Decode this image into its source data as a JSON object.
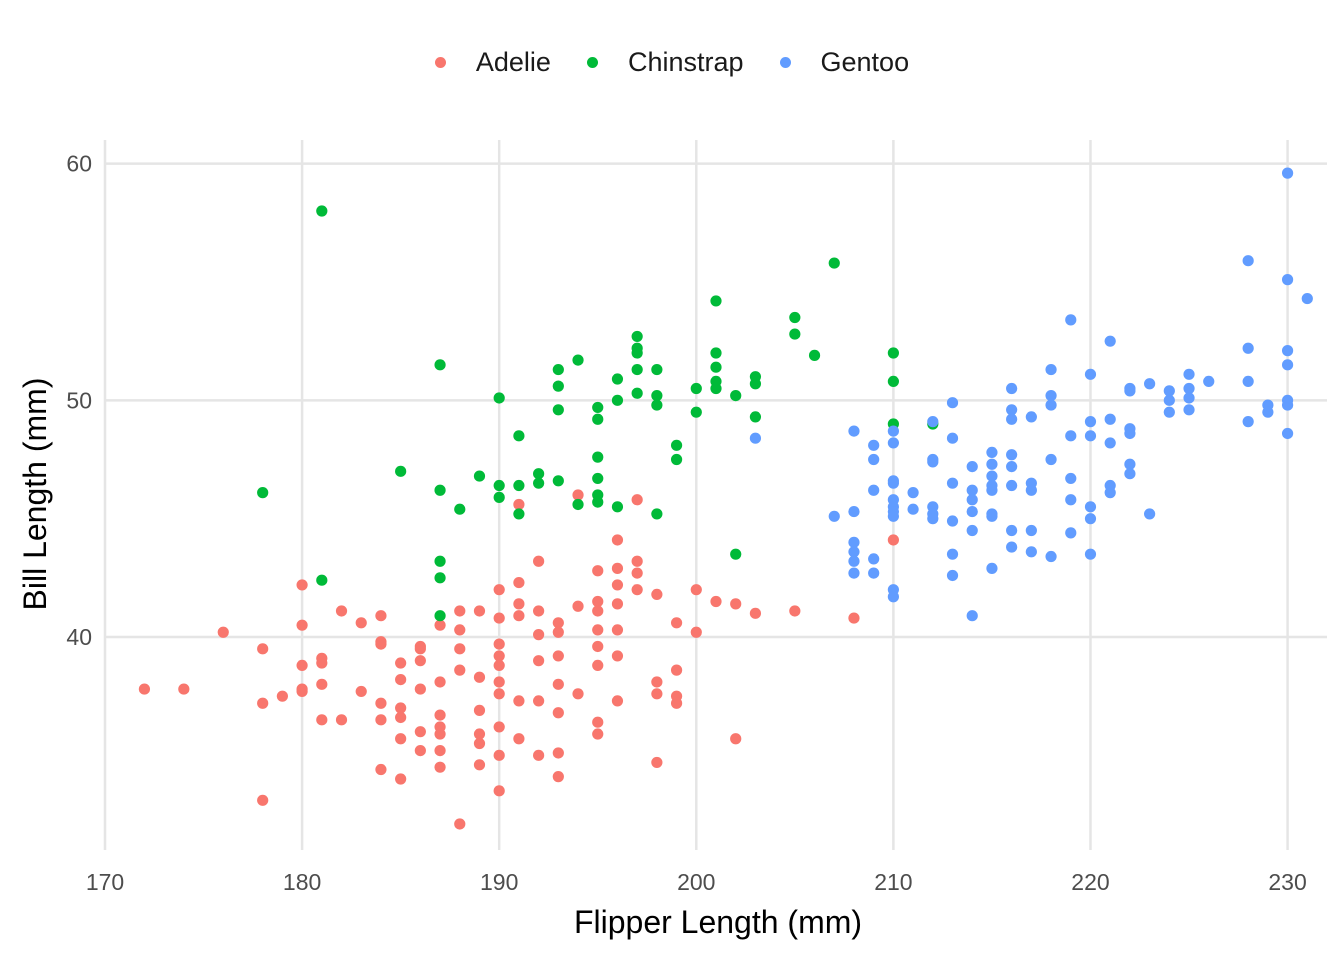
{
  "chart_data": {
    "type": "scatter",
    "xlabel": "Flipper Length (mm)",
    "ylabel": "Bill Length (mm)",
    "xlim": [
      170,
      232
    ],
    "ylim": [
      31,
      61
    ],
    "xticks": [
      "170",
      "180",
      "190",
      "200",
      "210",
      "220",
      "230"
    ],
    "yticks": [
      "40",
      "50",
      "60"
    ],
    "grid": true,
    "legend_position": "top",
    "series": [
      {
        "name": "Adelie",
        "color": "#F8766D",
        "points": [
          [
            172,
            37.8
          ],
          [
            174,
            37.8
          ],
          [
            176,
            40.2
          ],
          [
            178,
            39.5
          ],
          [
            178,
            37.2
          ],
          [
            178,
            33.1
          ],
          [
            179,
            37.5
          ],
          [
            180,
            42.2
          ],
          [
            180,
            40.5
          ],
          [
            180,
            38.8
          ],
          [
            180,
            37.8
          ],
          [
            180,
            37.7
          ],
          [
            181,
            39.1
          ],
          [
            181,
            38.9
          ],
          [
            181,
            38.0
          ],
          [
            181,
            36.5
          ],
          [
            182,
            41.1
          ],
          [
            182,
            36.5
          ],
          [
            183,
            40.6
          ],
          [
            183,
            37.7
          ],
          [
            184,
            40.9
          ],
          [
            184,
            39.8
          ],
          [
            184,
            39.7
          ],
          [
            184,
            37.2
          ],
          [
            184,
            36.5
          ],
          [
            184,
            34.4
          ],
          [
            185,
            38.9
          ],
          [
            185,
            38.2
          ],
          [
            185,
            37.0
          ],
          [
            185,
            36.6
          ],
          [
            185,
            35.7
          ],
          [
            185,
            34.0
          ],
          [
            186,
            39.6
          ],
          [
            186,
            39.5
          ],
          [
            186,
            39.0
          ],
          [
            186,
            37.8
          ],
          [
            186,
            36.0
          ],
          [
            186,
            35.2
          ],
          [
            187,
            40.5
          ],
          [
            187,
            38.1
          ],
          [
            187,
            36.7
          ],
          [
            187,
            36.2
          ],
          [
            187,
            35.9
          ],
          [
            187,
            35.2
          ],
          [
            187,
            34.5
          ],
          [
            188,
            41.1
          ],
          [
            188,
            40.3
          ],
          [
            188,
            39.5
          ],
          [
            188,
            38.6
          ],
          [
            188,
            32.1
          ],
          [
            189,
            41.1
          ],
          [
            189,
            38.3
          ],
          [
            189,
            36.9
          ],
          [
            189,
            35.9
          ],
          [
            189,
            35.5
          ],
          [
            189,
            34.6
          ],
          [
            190,
            42.0
          ],
          [
            190,
            40.8
          ],
          [
            190,
            39.7
          ],
          [
            190,
            39.2
          ],
          [
            190,
            38.8
          ],
          [
            190,
            38.1
          ],
          [
            190,
            37.6
          ],
          [
            190,
            36.2
          ],
          [
            190,
            35.0
          ],
          [
            190,
            33.5
          ],
          [
            191,
            45.6
          ],
          [
            191,
            42.3
          ],
          [
            191,
            41.4
          ],
          [
            191,
            40.9
          ],
          [
            191,
            37.3
          ],
          [
            191,
            35.7
          ],
          [
            192,
            43.2
          ],
          [
            192,
            41.1
          ],
          [
            192,
            40.1
          ],
          [
            192,
            39.0
          ],
          [
            192,
            37.3
          ],
          [
            192,
            35.0
          ],
          [
            193,
            40.6
          ],
          [
            193,
            40.2
          ],
          [
            193,
            39.2
          ],
          [
            193,
            38.0
          ],
          [
            193,
            36.8
          ],
          [
            193,
            35.1
          ],
          [
            193,
            34.1
          ],
          [
            194,
            46.0
          ],
          [
            194,
            41.3
          ],
          [
            194,
            37.6
          ],
          [
            195,
            42.8
          ],
          [
            195,
            41.5
          ],
          [
            195,
            41.1
          ],
          [
            195,
            40.3
          ],
          [
            195,
            39.6
          ],
          [
            195,
            38.8
          ],
          [
            195,
            36.4
          ],
          [
            195,
            35.9
          ],
          [
            196,
            44.1
          ],
          [
            196,
            42.9
          ],
          [
            196,
            42.2
          ],
          [
            196,
            41.4
          ],
          [
            196,
            40.3
          ],
          [
            196,
            39.2
          ],
          [
            196,
            37.3
          ],
          [
            197,
            45.8
          ],
          [
            197,
            43.2
          ],
          [
            197,
            42.7
          ],
          [
            197,
            42.0
          ],
          [
            198,
            41.8
          ],
          [
            198,
            38.1
          ],
          [
            198,
            37.6
          ],
          [
            198,
            34.7
          ],
          [
            199,
            40.6
          ],
          [
            199,
            38.6
          ],
          [
            199,
            37.5
          ],
          [
            199,
            37.2
          ],
          [
            200,
            42.0
          ],
          [
            200,
            40.2
          ],
          [
            201,
            41.5
          ],
          [
            202,
            41.4
          ],
          [
            202,
            35.7
          ],
          [
            203,
            41.0
          ],
          [
            205,
            41.1
          ],
          [
            208,
            40.8
          ],
          [
            210,
            44.1
          ]
        ]
      },
      {
        "name": "Chinstrap",
        "color": "#00BA38",
        "points": [
          [
            178,
            46.1
          ],
          [
            181,
            58.0
          ],
          [
            181,
            42.4
          ],
          [
            185,
            47.0
          ],
          [
            187,
            51.5
          ],
          [
            187,
            46.2
          ],
          [
            187,
            43.2
          ],
          [
            187,
            42.5
          ],
          [
            187,
            40.9
          ],
          [
            188,
            45.4
          ],
          [
            189,
            46.8
          ],
          [
            190,
            50.1
          ],
          [
            190,
            46.4
          ],
          [
            190,
            45.9
          ],
          [
            191,
            48.5
          ],
          [
            191,
            46.4
          ],
          [
            191,
            45.2
          ],
          [
            192,
            46.9
          ],
          [
            192,
            46.5
          ],
          [
            193,
            51.3
          ],
          [
            193,
            50.6
          ],
          [
            193,
            49.6
          ],
          [
            193,
            46.6
          ],
          [
            194,
            51.7
          ],
          [
            194,
            45.6
          ],
          [
            195,
            49.7
          ],
          [
            195,
            49.2
          ],
          [
            195,
            47.6
          ],
          [
            195,
            46.7
          ],
          [
            195,
            46.0
          ],
          [
            195,
            45.7
          ],
          [
            196,
            50.9
          ],
          [
            196,
            50.0
          ],
          [
            196,
            45.5
          ],
          [
            197,
            52.7
          ],
          [
            197,
            52.2
          ],
          [
            197,
            52.0
          ],
          [
            197,
            51.3
          ],
          [
            197,
            50.3
          ],
          [
            198,
            51.3
          ],
          [
            198,
            50.2
          ],
          [
            198,
            49.8
          ],
          [
            198,
            45.2
          ],
          [
            199,
            48.1
          ],
          [
            199,
            47.5
          ],
          [
            200,
            50.5
          ],
          [
            200,
            49.5
          ],
          [
            201,
            54.2
          ],
          [
            201,
            52.0
          ],
          [
            201,
            51.4
          ],
          [
            201,
            50.8
          ],
          [
            201,
            50.5
          ],
          [
            202,
            50.2
          ],
          [
            202,
            43.5
          ],
          [
            203,
            51.0
          ],
          [
            203,
            50.7
          ],
          [
            203,
            49.3
          ],
          [
            205,
            53.5
          ],
          [
            205,
            52.8
          ],
          [
            206,
            51.9
          ],
          [
            207,
            55.8
          ],
          [
            210,
            52.0
          ],
          [
            210,
            50.8
          ],
          [
            210,
            49.0
          ],
          [
            212,
            49.0
          ]
        ]
      },
      {
        "name": "Gentoo",
        "color": "#619CFF",
        "points": [
          [
            203,
            48.4
          ],
          [
            207,
            45.1
          ],
          [
            208,
            48.7
          ],
          [
            208,
            45.3
          ],
          [
            208,
            44.0
          ],
          [
            208,
            43.6
          ],
          [
            208,
            43.2
          ],
          [
            208,
            42.7
          ],
          [
            209,
            48.1
          ],
          [
            209,
            47.5
          ],
          [
            209,
            46.2
          ],
          [
            209,
            43.3
          ],
          [
            209,
            42.7
          ],
          [
            210,
            48.7
          ],
          [
            210,
            48.2
          ],
          [
            210,
            46.6
          ],
          [
            210,
            46.5
          ],
          [
            210,
            45.8
          ],
          [
            210,
            45.5
          ],
          [
            210,
            45.3
          ],
          [
            210,
            45.1
          ],
          [
            210,
            42.0
          ],
          [
            210,
            41.7
          ],
          [
            211,
            46.1
          ],
          [
            211,
            45.4
          ],
          [
            212,
            49.1
          ],
          [
            212,
            47.5
          ],
          [
            212,
            47.4
          ],
          [
            212,
            45.5
          ],
          [
            212,
            45.2
          ],
          [
            212,
            45.0
          ],
          [
            213,
            49.9
          ],
          [
            213,
            48.4
          ],
          [
            213,
            46.5
          ],
          [
            213,
            44.9
          ],
          [
            213,
            43.5
          ],
          [
            213,
            42.6
          ],
          [
            214,
            47.2
          ],
          [
            214,
            46.2
          ],
          [
            214,
            45.8
          ],
          [
            214,
            45.3
          ],
          [
            214,
            44.5
          ],
          [
            214,
            40.9
          ],
          [
            215,
            47.8
          ],
          [
            215,
            47.3
          ],
          [
            215,
            46.8
          ],
          [
            215,
            46.4
          ],
          [
            215,
            46.2
          ],
          [
            215,
            45.2
          ],
          [
            215,
            45.1
          ],
          [
            215,
            42.9
          ],
          [
            216,
            50.5
          ],
          [
            216,
            49.6
          ],
          [
            216,
            49.2
          ],
          [
            216,
            47.7
          ],
          [
            216,
            47.2
          ],
          [
            216,
            46.4
          ],
          [
            216,
            44.5
          ],
          [
            216,
            43.8
          ],
          [
            217,
            49.3
          ],
          [
            217,
            46.5
          ],
          [
            217,
            46.2
          ],
          [
            217,
            44.5
          ],
          [
            217,
            43.6
          ],
          [
            218,
            51.3
          ],
          [
            218,
            50.2
          ],
          [
            218,
            49.8
          ],
          [
            218,
            47.5
          ],
          [
            218,
            43.4
          ],
          [
            219,
            53.4
          ],
          [
            219,
            48.5
          ],
          [
            219,
            46.7
          ],
          [
            219,
            45.8
          ],
          [
            219,
            44.4
          ],
          [
            220,
            51.1
          ],
          [
            220,
            49.1
          ],
          [
            220,
            48.5
          ],
          [
            220,
            45.5
          ],
          [
            220,
            45.0
          ],
          [
            220,
            43.5
          ],
          [
            221,
            52.5
          ],
          [
            221,
            49.2
          ],
          [
            221,
            48.2
          ],
          [
            221,
            46.4
          ],
          [
            221,
            46.1
          ],
          [
            222,
            50.5
          ],
          [
            222,
            50.4
          ],
          [
            222,
            48.8
          ],
          [
            222,
            48.6
          ],
          [
            222,
            47.3
          ],
          [
            222,
            46.9
          ],
          [
            223,
            50.7
          ],
          [
            223,
            45.2
          ],
          [
            224,
            50.4
          ],
          [
            224,
            50.0
          ],
          [
            224,
            49.5
          ],
          [
            225,
            51.1
          ],
          [
            225,
            50.5
          ],
          [
            225,
            50.1
          ],
          [
            225,
            49.6
          ],
          [
            226,
            50.8
          ],
          [
            228,
            55.9
          ],
          [
            228,
            52.2
          ],
          [
            228,
            50.8
          ],
          [
            228,
            49.1
          ],
          [
            229,
            49.8
          ],
          [
            229,
            49.5
          ],
          [
            230,
            59.6
          ],
          [
            230,
            55.1
          ],
          [
            230,
            52.1
          ],
          [
            230,
            51.5
          ],
          [
            230,
            50.0
          ],
          [
            230,
            49.8
          ],
          [
            230,
            48.6
          ],
          [
            231,
            54.3
          ]
        ]
      }
    ]
  }
}
